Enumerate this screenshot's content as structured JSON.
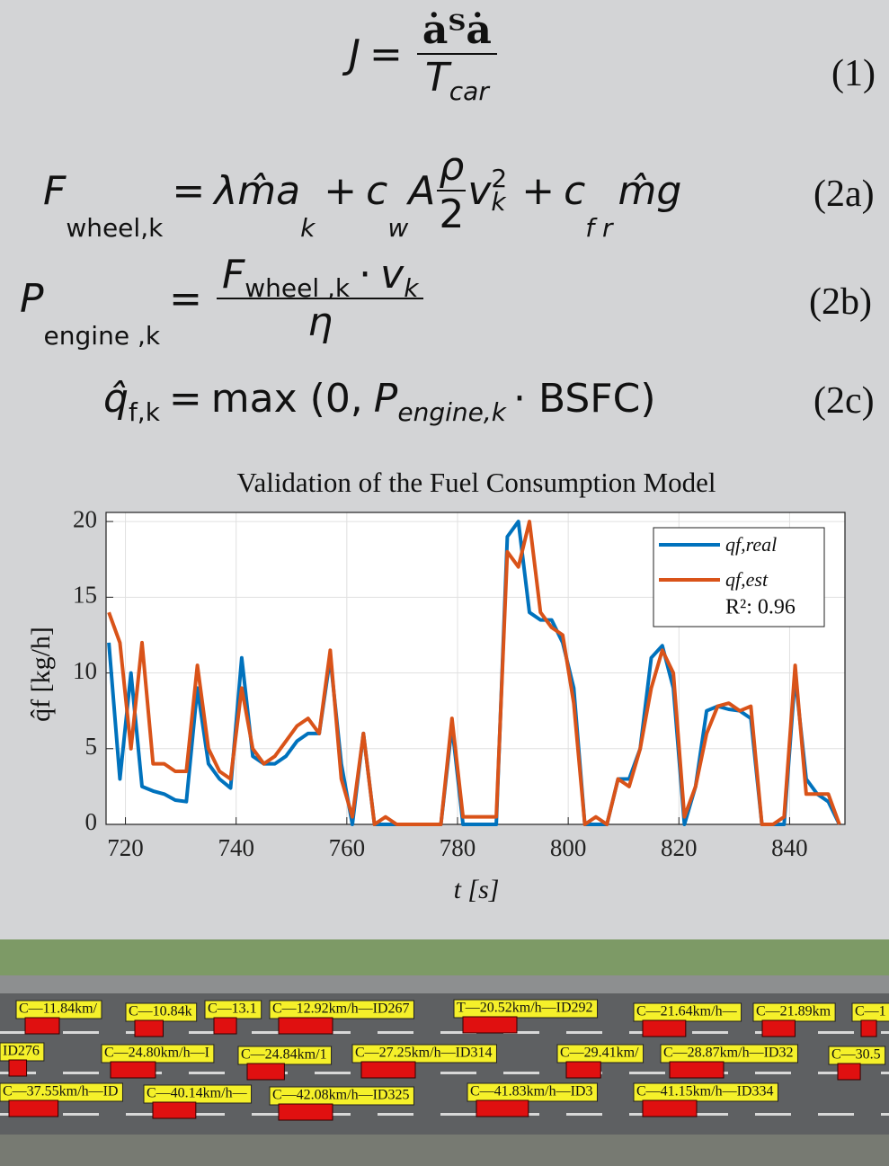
{
  "equations": [
    {
      "tag": "(1)",
      "parts": [
        "J",
        "=",
        "ȧᵀȧ",
        "T",
        "car"
      ]
    },
    {
      "tag": "(2a)",
      "parts": [
        "F",
        "wheel,k",
        "=",
        "λm̂a",
        "k",
        "+",
        "c",
        "w",
        "A",
        "ρ",
        "2",
        "v",
        "2",
        "k",
        "+",
        "c",
        "f r",
        "m̂g"
      ]
    },
    {
      "tag": "(2b)",
      "parts": [
        "P",
        "engine ,k",
        "=",
        "F",
        "wheel ,k",
        "·",
        "v",
        "k",
        "η"
      ]
    },
    {
      "tag": "(2c)",
      "parts": [
        "q̂",
        "f,k",
        "=",
        "max (0,",
        "P",
        "engine,k",
        "· BSFC)"
      ]
    }
  ],
  "chart_data": {
    "type": "line",
    "title": "Validation of the Fuel Consumption Model",
    "xlabel": "t [s]",
    "ylabel": "q̂f [kg/h]",
    "x": [
      717,
      719,
      721,
      723,
      725,
      727,
      729,
      731,
      733,
      735,
      737,
      739,
      741,
      743,
      745,
      747,
      749,
      751,
      753,
      755,
      757,
      759,
      761,
      763,
      765,
      767,
      769,
      771,
      773,
      775,
      777,
      779,
      781,
      783,
      785,
      787,
      789,
      791,
      793,
      795,
      797,
      799,
      801,
      803,
      805,
      807,
      809,
      811,
      813,
      815,
      817,
      819,
      821,
      823,
      825,
      827,
      829,
      831,
      833,
      835,
      837,
      839,
      841,
      843,
      845,
      847,
      849
    ],
    "series": [
      {
        "name": "qf,real",
        "color": "#0072bd",
        "values": [
          12,
          3,
          10,
          2.5,
          2.2,
          2,
          1.6,
          1.5,
          9,
          4,
          3,
          2.4,
          11,
          4.5,
          4,
          4,
          4.5,
          5.5,
          6,
          6,
          11,
          4,
          0,
          6,
          0,
          0,
          0,
          0,
          0,
          0,
          0,
          6.5,
          0,
          0,
          0,
          0,
          19,
          20,
          14,
          13.5,
          13.5,
          12,
          9,
          0,
          0,
          0,
          3,
          3,
          5,
          11,
          11.8,
          9,
          0,
          2.5,
          7.5,
          7.8,
          7.6,
          7.5,
          7,
          0,
          0,
          0,
          9.8,
          3,
          2,
          1.5,
          0
        ]
      },
      {
        "name": "qf,est",
        "color": "#d95319",
        "values": [
          14,
          12,
          5,
          12,
          4,
          4,
          3.5,
          3.5,
          10.5,
          5,
          3.5,
          3,
          9,
          5,
          4,
          4.5,
          5.5,
          6.5,
          7,
          6,
          11.5,
          3,
          0.5,
          6,
          0,
          0.5,
          0,
          0,
          0,
          0,
          0,
          7,
          0.5,
          0.5,
          0.5,
          0.5,
          18,
          17,
          20,
          14,
          13,
          12.5,
          8,
          0,
          0.5,
          0,
          3,
          2.5,
          5,
          9,
          11.5,
          10,
          0.5,
          2.5,
          6,
          7.8,
          8,
          7.5,
          7.8,
          0,
          0,
          0.5,
          10.5,
          2,
          2,
          2,
          0
        ]
      }
    ],
    "annotation": "R²: 0.96",
    "xlim": [
      716.5,
      850
    ],
    "ylim": [
      0,
      20.6
    ],
    "xticks": [
      720,
      740,
      760,
      780,
      800,
      820,
      840
    ],
    "yticks": [
      0,
      5,
      10,
      15,
      20
    ],
    "grid": true,
    "legend": "upper right"
  },
  "vehicle_labels": [
    "C—11.84km/",
    "C—10.84k",
    "C—13.1",
    "C—12.92km/h—ID267",
    "T—20.52km/h—ID292",
    "C—21.64km/h—",
    "C—21.89km",
    "C—1",
    "ID276",
    "C—24.80km/h—I",
    "C—24.84km/1",
    "C—27.25km/h—ID314",
    "C—29.41km/",
    "C—28.87km/h—ID32",
    "C—30.5",
    "C—37.55km/h—ID",
    "C—40.14km/h—",
    "C—42.08km/h—ID325",
    "C—41.83km/h—ID3",
    "C—41.15km/h—ID334"
  ]
}
